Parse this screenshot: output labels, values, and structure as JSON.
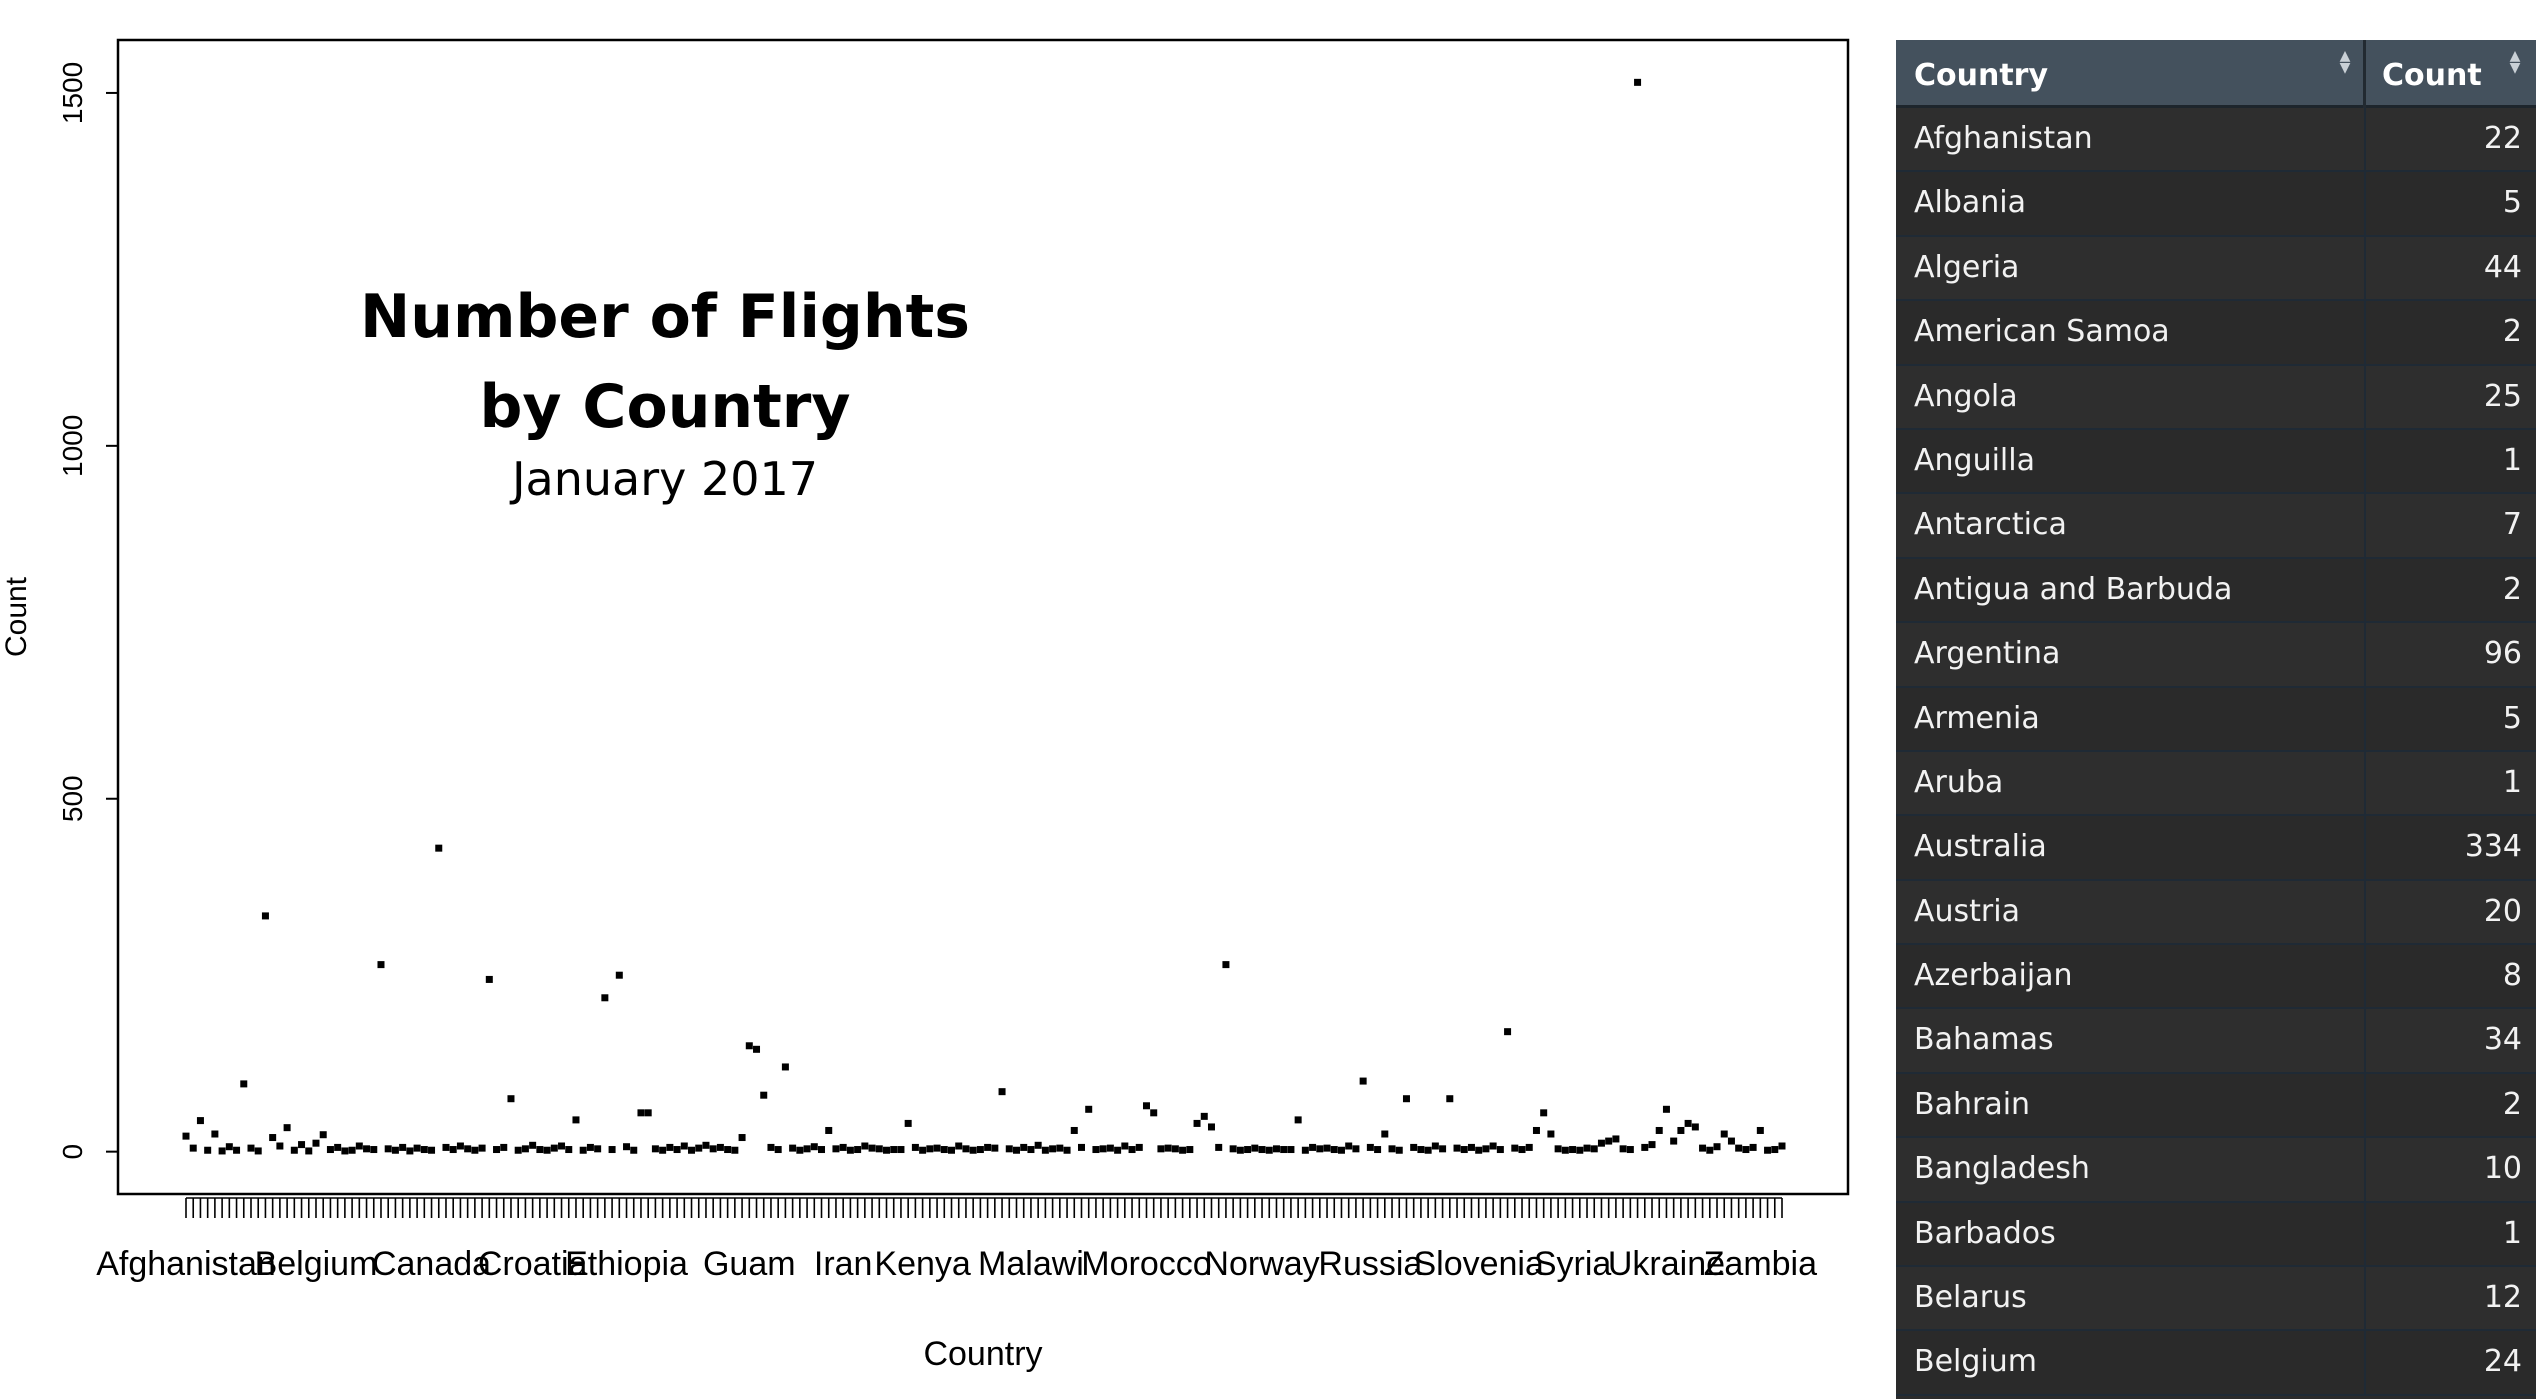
{
  "chart_data": {
    "type": "scatter",
    "title": "Number of Flights\nby Country",
    "subtitle": "January 2017",
    "xlabel": "Country",
    "ylabel": "Count",
    "ylim": [
      -60,
      1575
    ],
    "yticks": [
      0,
      500,
      1000,
      1500
    ],
    "x_tick_labels": [
      "Afghanistan",
      "Belgium",
      "Canada",
      "Croatia",
      "Ethiopia",
      "Guam",
      "Iran",
      "Kenya",
      "Malawi",
      "Morocco",
      "Norway",
      "Russia",
      "Slovenia",
      "Syria",
      "Ukraine",
      "Zambia"
    ],
    "x_tick_label_index": [
      1,
      19,
      35,
      49,
      62,
      79,
      92,
      103,
      118,
      134,
      150,
      165,
      180,
      193,
      206,
      219
    ],
    "n_points": 222,
    "grid": false,
    "legend": "none",
    "values": [
      22,
      5,
      44,
      2,
      25,
      1,
      7,
      2,
      96,
      5,
      1,
      334,
      20,
      8,
      34,
      2,
      10,
      1,
      12,
      24,
      3,
      6,
      1,
      2,
      8,
      4,
      3,
      265,
      4,
      2,
      6,
      1,
      5,
      3,
      2,
      430,
      6,
      3,
      8,
      4,
      2,
      5,
      244,
      3,
      6,
      75,
      2,
      4,
      9,
      3,
      2,
      5,
      8,
      3,
      45,
      2,
      6,
      4,
      218,
      3,
      250,
      7,
      2,
      55,
      55,
      4,
      2,
      6,
      3,
      8,
      2,
      5,
      9,
      4,
      6,
      3,
      2,
      20,
      150,
      145,
      80,
      6,
      3,
      120,
      5,
      2,
      4,
      7,
      3,
      30,
      4,
      6,
      2,
      3,
      8,
      5,
      4,
      2,
      3,
      3,
      40,
      6,
      2,
      4,
      5,
      3,
      2,
      8,
      4,
      2,
      3,
      6,
      5,
      85,
      4,
      2,
      6,
      3,
      9,
      2,
      4,
      5,
      2,
      30,
      6,
      60,
      3,
      4,
      5,
      2,
      8,
      3,
      6,
      65,
      55,
      4,
      5,
      4,
      2,
      3,
      40,
      50,
      35,
      6,
      265,
      4,
      2,
      3,
      5,
      3,
      2,
      4,
      3,
      3,
      45,
      2,
      6,
      4,
      5,
      3,
      2,
      8,
      4,
      100,
      6,
      3,
      25,
      4,
      2,
      75,
      6,
      3,
      2,
      8,
      4,
      75,
      5,
      3,
      6,
      2,
      4,
      8,
      3,
      170,
      5,
      3,
      6,
      30,
      55,
      25,
      4,
      2,
      3,
      2,
      5,
      4,
      12,
      15,
      18,
      4,
      3,
      1515,
      6,
      10,
      30,
      60,
      15,
      30,
      40,
      35,
      5,
      2,
      7,
      25,
      15,
      5,
      3,
      6,
      30,
      2,
      3,
      8
    ],
    "table": {
      "columns": [
        "Country",
        "Count"
      ],
      "rows": [
        [
          "Afghanistan",
          "22"
        ],
        [
          "Albania",
          "5"
        ],
        [
          "Algeria",
          "44"
        ],
        [
          "American Samoa",
          "2"
        ],
        [
          "Angola",
          "25"
        ],
        [
          "Anguilla",
          "1"
        ],
        [
          "Antarctica",
          "7"
        ],
        [
          "Antigua and Barbuda",
          "2"
        ],
        [
          "Argentina",
          "96"
        ],
        [
          "Armenia",
          "5"
        ],
        [
          "Aruba",
          "1"
        ],
        [
          "Australia",
          "334"
        ],
        [
          "Austria",
          "20"
        ],
        [
          "Azerbaijan",
          "8"
        ],
        [
          "Bahamas",
          "34"
        ],
        [
          "Bahrain",
          "2"
        ],
        [
          "Bangladesh",
          "10"
        ],
        [
          "Barbados",
          "1"
        ],
        [
          "Belarus",
          "12"
        ],
        [
          "Belgium",
          "24"
        ]
      ]
    }
  },
  "colors": {
    "points": "#000000",
    "table_header": "#44515d",
    "table_row": "#2e2e2e",
    "table_text": "#f2f2f2"
  }
}
